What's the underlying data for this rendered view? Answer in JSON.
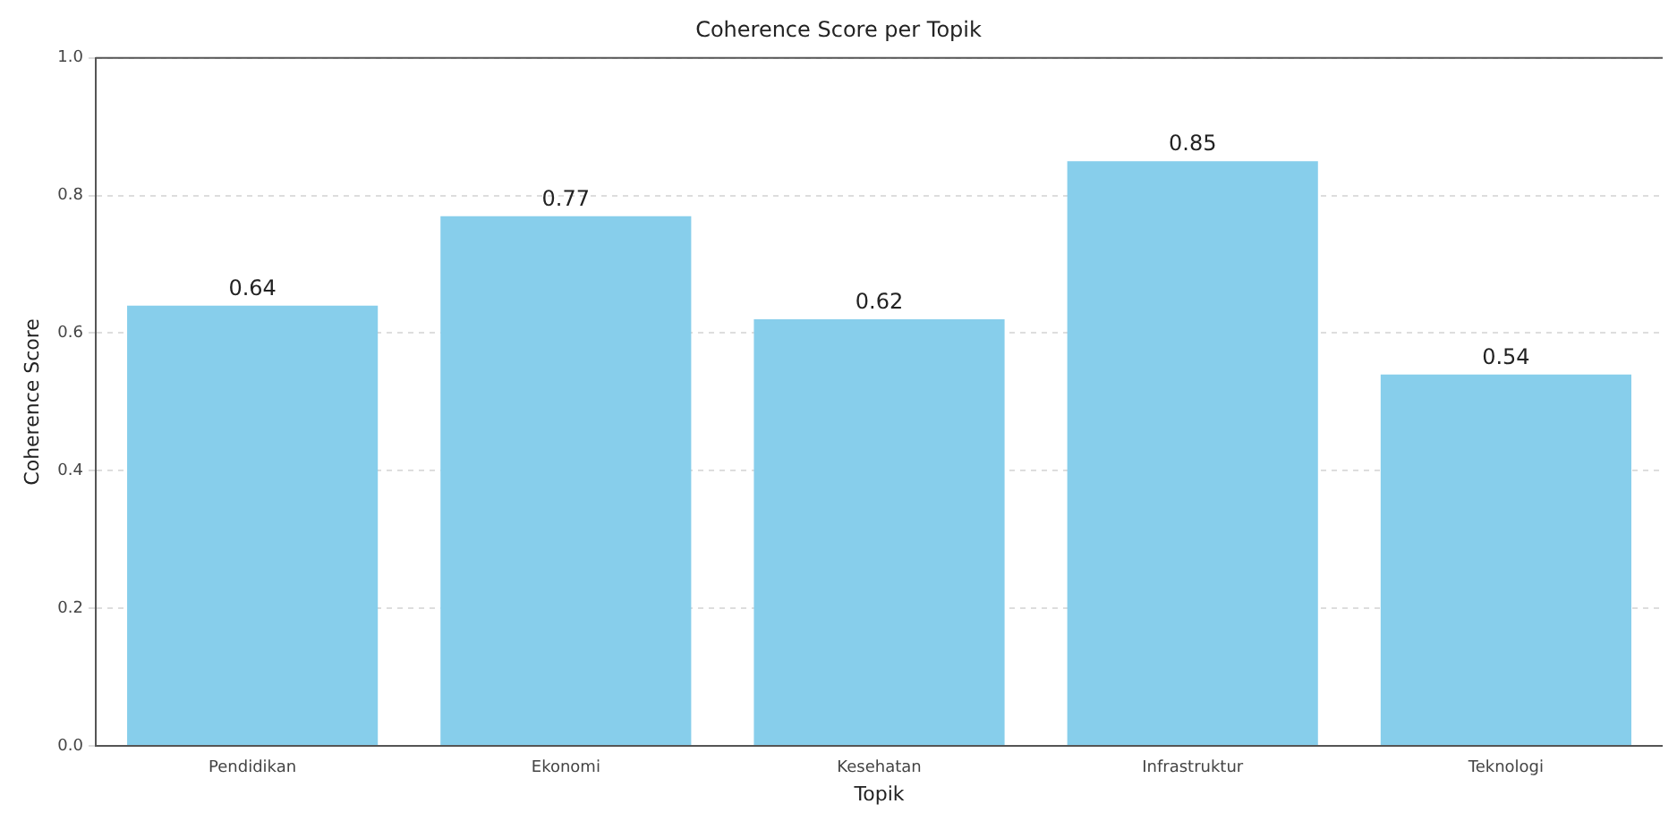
{
  "chart_data": {
    "type": "bar",
    "title": "Coherence Score per Topik",
    "xlabel": "Topik",
    "ylabel": "Coherence Score",
    "categories": [
      "Pendidikan",
      "Ekonomi",
      "Kesehatan",
      "Infrastruktur",
      "Teknologi"
    ],
    "values": [
      0.64,
      0.77,
      0.62,
      0.85,
      0.54
    ],
    "color": "#87ceeb",
    "ylim": [
      0,
      1.0
    ],
    "yticks": [
      {
        "value": 0,
        "label": "0.0"
      },
      {
        "value": 0.2,
        "label": "0.2"
      },
      {
        "value": 0.4,
        "label": "0.4"
      },
      {
        "value": 0.6,
        "label": "0.6"
      },
      {
        "value": 0.8,
        "label": "0.8"
      },
      {
        "value": 1.0,
        "label": "1.0"
      }
    ],
    "grid": "y",
    "data_labels": true
  }
}
